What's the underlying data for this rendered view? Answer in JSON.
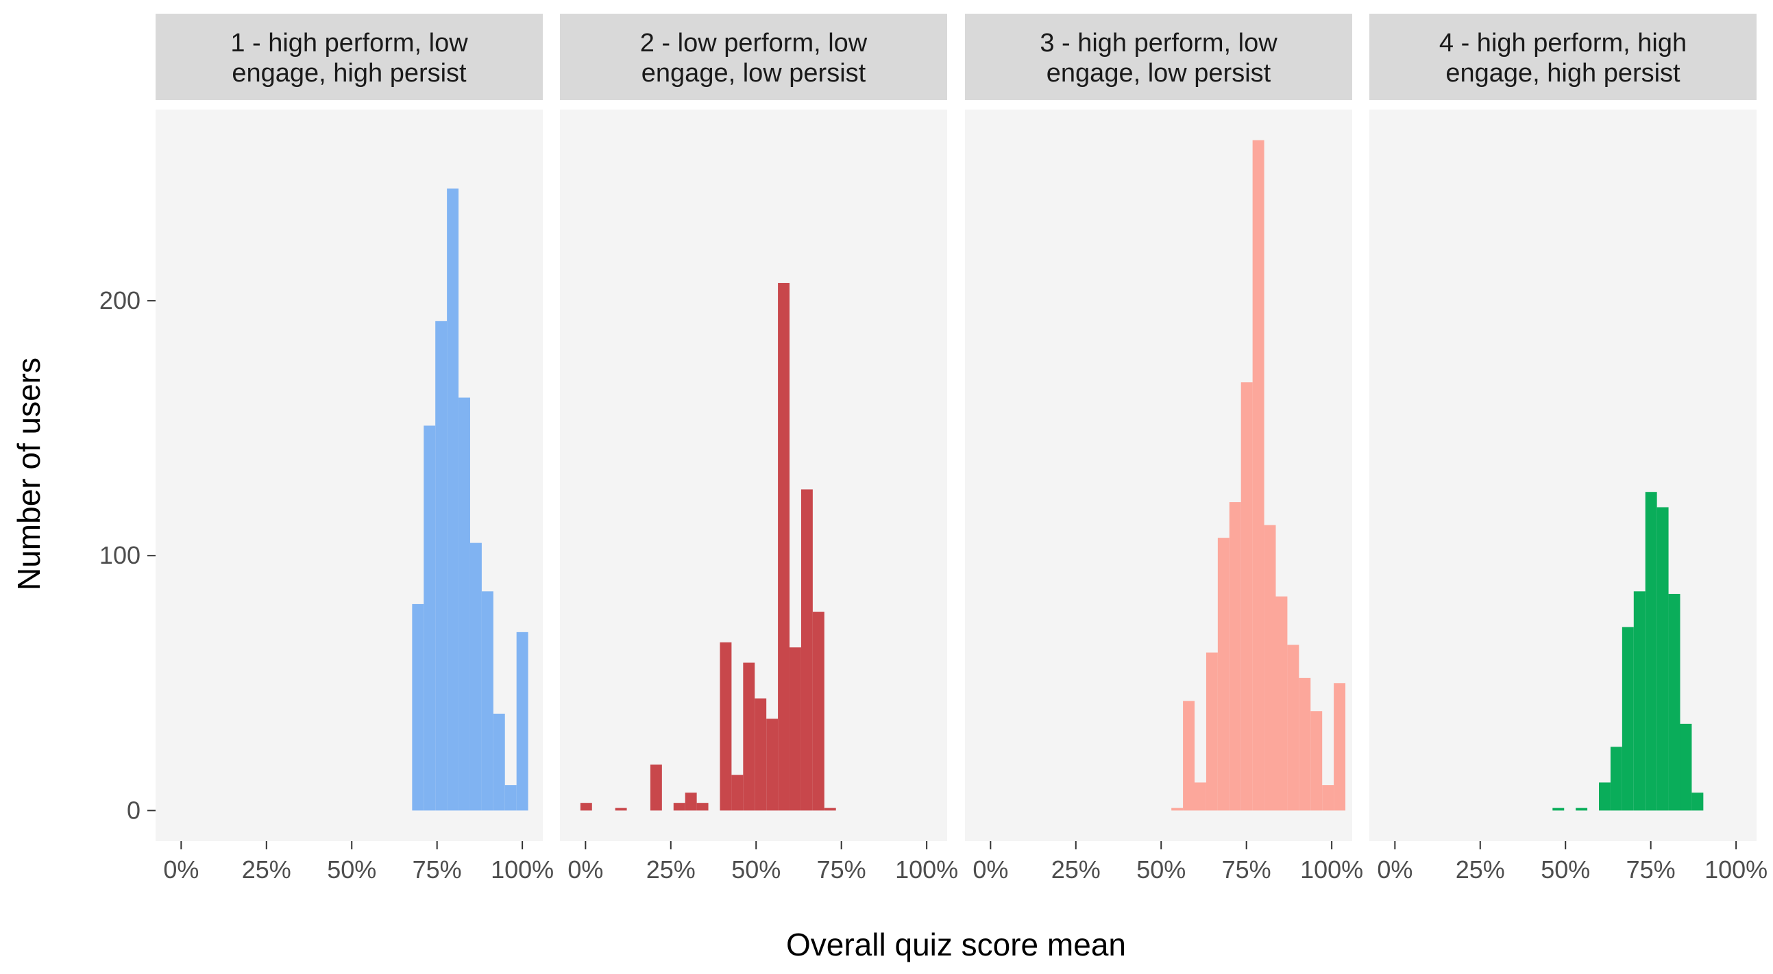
{
  "chart_data": {
    "type": "bar",
    "subtype": "faceted-histogram",
    "xlabel": "Overall quiz score mean",
    "ylabel": "Number of users",
    "x_ticks": [
      "0%",
      "25%",
      "50%",
      "75%",
      "100%"
    ],
    "x_tick_values": [
      0,
      25,
      50,
      75,
      100
    ],
    "xlim": [
      -7.5,
      106
    ],
    "y_ticks": [
      "0",
      "100",
      "200"
    ],
    "y_tick_values": [
      0,
      100,
      200
    ],
    "ylim": [
      -12,
      275
    ],
    "bin_width": 3.4,
    "panels": [
      {
        "title_lines": [
          "1 - high perform, low",
          "engage, high persist"
        ],
        "color": "#80B3F2",
        "bins": [
          {
            "x0": 67.7,
            "count": 81
          },
          {
            "x0": 71.1,
            "count": 151
          },
          {
            "x0": 74.5,
            "count": 192
          },
          {
            "x0": 77.9,
            "count": 244
          },
          {
            "x0": 81.3,
            "count": 162
          },
          {
            "x0": 84.7,
            "count": 105
          },
          {
            "x0": 88.1,
            "count": 86
          },
          {
            "x0": 91.5,
            "count": 38
          },
          {
            "x0": 94.9,
            "count": 10
          },
          {
            "x0": 98.3,
            "count": 70
          }
        ]
      },
      {
        "title_lines": [
          "2 - low perform, low",
          "engage, low persist"
        ],
        "color": "#C8474B",
        "bins": [
          {
            "x0": -1.5,
            "count": 3
          },
          {
            "x0": 8.7,
            "count": 1
          },
          {
            "x0": 19.0,
            "count": 18
          },
          {
            "x0": 25.8,
            "count": 3
          },
          {
            "x0": 29.2,
            "count": 7
          },
          {
            "x0": 32.6,
            "count": 3
          },
          {
            "x0": 39.4,
            "count": 66
          },
          {
            "x0": 42.8,
            "count": 14
          },
          {
            "x0": 46.2,
            "count": 58
          },
          {
            "x0": 49.6,
            "count": 44
          },
          {
            "x0": 53.0,
            "count": 36
          },
          {
            "x0": 56.4,
            "count": 207
          },
          {
            "x0": 59.8,
            "count": 64
          },
          {
            "x0": 63.2,
            "count": 126
          },
          {
            "x0": 66.6,
            "count": 78
          },
          {
            "x0": 70.0,
            "count": 1
          }
        ]
      },
      {
        "title_lines": [
          "3 - high perform, low",
          "engage, low persist"
        ],
        "color": "#FCA79B",
        "bins": [
          {
            "x0": 53.0,
            "count": 1
          },
          {
            "x0": 56.4,
            "count": 43
          },
          {
            "x0": 59.8,
            "count": 11
          },
          {
            "x0": 63.2,
            "count": 62
          },
          {
            "x0": 66.6,
            "count": 107
          },
          {
            "x0": 70.0,
            "count": 121
          },
          {
            "x0": 73.4,
            "count": 168
          },
          {
            "x0": 76.8,
            "count": 263
          },
          {
            "x0": 80.2,
            "count": 112
          },
          {
            "x0": 83.6,
            "count": 84
          },
          {
            "x0": 87.0,
            "count": 65
          },
          {
            "x0": 90.4,
            "count": 52
          },
          {
            "x0": 93.8,
            "count": 39
          },
          {
            "x0": 97.2,
            "count": 10
          },
          {
            "x0": 100.6,
            "count": 50
          }
        ]
      },
      {
        "title_lines": [
          "4 - high perform, high",
          "engage, high persist"
        ],
        "color": "#0AAD5A",
        "bins": [
          {
            "x0": 46.2,
            "count": 1
          },
          {
            "x0": 53.0,
            "count": 1
          },
          {
            "x0": 59.8,
            "count": 11
          },
          {
            "x0": 63.2,
            "count": 25
          },
          {
            "x0": 66.6,
            "count": 72
          },
          {
            "x0": 70.0,
            "count": 86
          },
          {
            "x0": 73.4,
            "count": 125
          },
          {
            "x0": 76.8,
            "count": 119
          },
          {
            "x0": 80.2,
            "count": 85
          },
          {
            "x0": 83.6,
            "count": 34
          },
          {
            "x0": 87.0,
            "count": 7
          }
        ]
      }
    ]
  }
}
